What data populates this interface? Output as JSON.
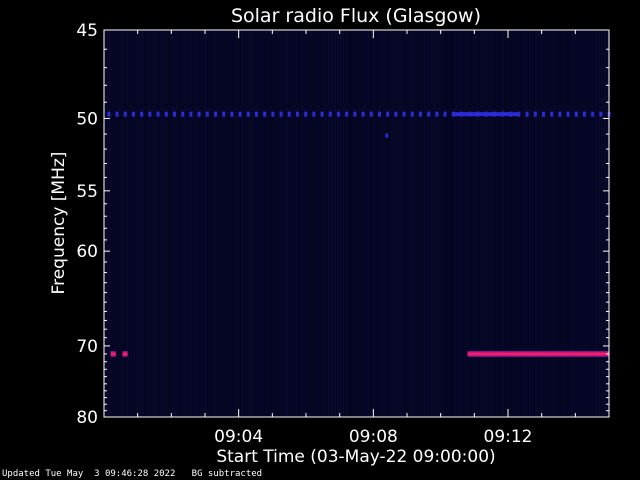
{
  "chart_data": {
    "type": "heatmap",
    "title": "Solar radio Flux (Glasgow)",
    "xlabel": "Start Time (03-May-22 09:00:00)",
    "ylabel": "Frequency [MHz]",
    "x_unit": "minutes after 09:00:00",
    "xlim": [
      0,
      15
    ],
    "ylim": [
      80,
      45
    ],
    "y_scale": "reciprocal (1/f)",
    "x_ticks": [
      {
        "value": 4,
        "label": "09:04"
      },
      {
        "value": 8,
        "label": "09:08"
      },
      {
        "value": 12,
        "label": "09:12"
      }
    ],
    "y_ticks": [
      {
        "value": 45,
        "label": "45"
      },
      {
        "value": 50,
        "label": "50"
      },
      {
        "value": 55,
        "label": "55"
      },
      {
        "value": 60,
        "label": "60"
      },
      {
        "value": 70,
        "label": "70"
      },
      {
        "value": 80,
        "label": "80"
      }
    ],
    "series": [
      {
        "frequency_mhz": 49.7,
        "intensity": "low",
        "color": "#2b2bd8",
        "segments": [
          [
            0.1,
            15.0
          ]
        ],
        "style": "dashed",
        "dense_segments": [
          [
            10.4,
            12.3
          ]
        ]
      },
      {
        "frequency_mhz": 71.0,
        "intensity": "high",
        "color": "#ff1a6a",
        "segments": [
          [
            0.2,
            0.35
          ],
          [
            0.55,
            0.7
          ],
          [
            10.8,
            15.0
          ]
        ],
        "style": "solid"
      }
    ],
    "outliers": [
      {
        "x": 8.4,
        "frequency_mhz": 51.1,
        "color": "#2b2bd8"
      }
    ],
    "colors": {
      "background": "#000000",
      "plot_background": "#050520",
      "axes": "#ffffff"
    }
  },
  "footer": {
    "updated": "Updated Tue May  3 09:46:28 2022",
    "note": "BG subtracted"
  }
}
